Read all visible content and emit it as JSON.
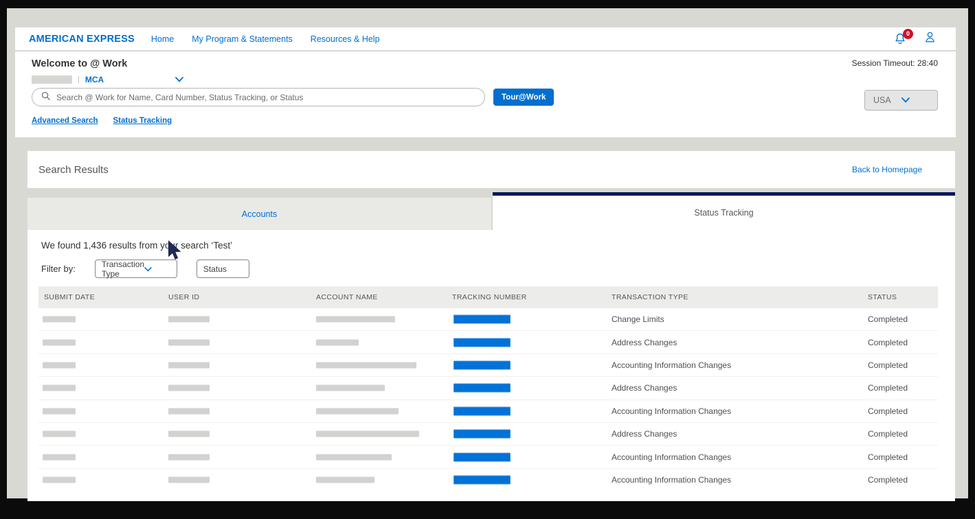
{
  "nav": {
    "brand": "AMERICAN EXPRESS",
    "links": [
      {
        "label": "Home"
      },
      {
        "label": "My Program & Statements"
      },
      {
        "label": "Resources & Help"
      }
    ],
    "notification_count": "0"
  },
  "welcome": {
    "title": "Welcome to @ Work",
    "org_separator": "|",
    "org_label": "MCA",
    "session_timeout": "Session Timeout: 28:40",
    "search_placeholder": "Search @ Work for Name, Card Number, Status Tracking, or Status",
    "tour_button": "Tour@Work",
    "country": "USA",
    "links": [
      {
        "label": "Advanced Search"
      },
      {
        "label": "Status Tracking"
      }
    ]
  },
  "results_header": {
    "title": "Search Results",
    "back_link": "Back to Homepage"
  },
  "tabs": [
    {
      "label": "Accounts",
      "active": false
    },
    {
      "label": "Status Tracking",
      "active": true
    }
  ],
  "results": {
    "summary": "We found 1,436 results from your search ‘Test’",
    "filter_label": "Filter by:",
    "filters": [
      {
        "label": "Transaction Type",
        "type": "dropdown"
      },
      {
        "label": "Status",
        "type": "input"
      }
    ]
  },
  "table": {
    "columns": [
      "SUBMIT DATE",
      "USER ID",
      "ACCOUNT NAME",
      "TRACKING NUMBER",
      "TRANSACTION TYPE",
      "STATUS"
    ],
    "rows": [
      {
        "transaction_type": "Change Limits",
        "status": "Completed",
        "account_bar_width": 115
      },
      {
        "transaction_type": "Address Changes",
        "status": "Completed",
        "account_bar_width": 62
      },
      {
        "transaction_type": "Accounting Information Changes",
        "status": "Completed",
        "account_bar_width": 146
      },
      {
        "transaction_type": "Address Changes",
        "status": "Completed",
        "account_bar_width": 100
      },
      {
        "transaction_type": "Accounting Information Changes",
        "status": "Completed",
        "account_bar_width": 120
      },
      {
        "transaction_type": "Address Changes",
        "status": "Completed",
        "account_bar_width": 150
      },
      {
        "transaction_type": "Accounting Information Changes",
        "status": "Completed",
        "account_bar_width": 110
      },
      {
        "transaction_type": "Accounting Information Changes",
        "status": "Completed",
        "account_bar_width": 85
      }
    ]
  },
  "colors": {
    "amex_blue": "#006fcf",
    "navy_accent": "#00175a",
    "badge_red": "#cc112c",
    "tracking_bar_blue": "#0072d8",
    "redacted_gray": "#d2d2d0"
  }
}
